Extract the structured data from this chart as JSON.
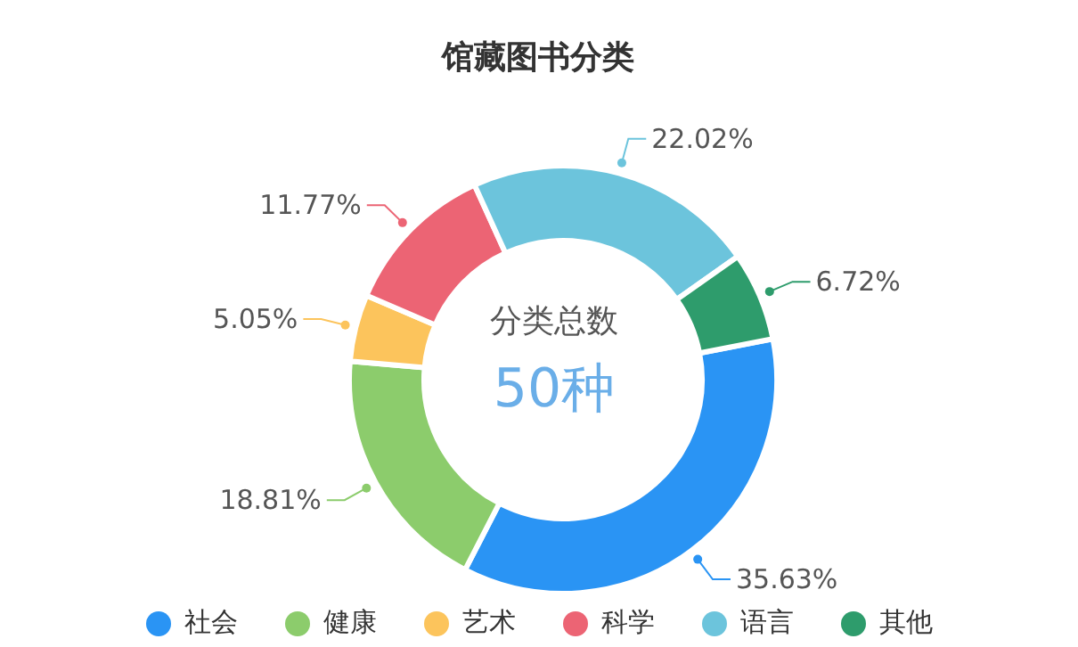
{
  "chart_data": {
    "type": "donut",
    "title": "馆藏图书分类",
    "categories": [
      "社会",
      "健康",
      "艺术",
      "科学",
      "语言",
      "其他"
    ],
    "values": [
      35.63,
      18.81,
      5.05,
      11.77,
      22.02,
      6.72
    ],
    "colors": [
      "#2a94f4",
      "#8ccc6c",
      "#fcc45c",
      "#ec6474",
      "#6cc4dc",
      "#2e9c6c"
    ],
    "annotations": [
      "分类总数",
      "50种"
    ],
    "value_labels": [
      "35.63%",
      "18.81%",
      "5.05%",
      "11.77%",
      "22.02%",
      "6.72%"
    ],
    "legend": "bottom"
  }
}
